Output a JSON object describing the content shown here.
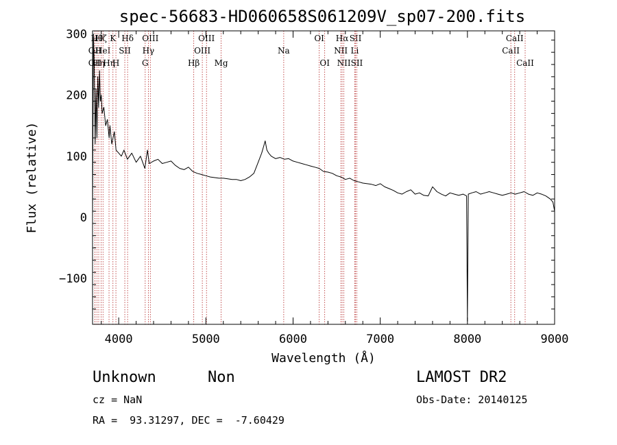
{
  "chart_data": {
    "type": "line",
    "title": "spec-56683-HD060658S061209V_sp07-200.fits",
    "xlabel": "Wavelength (Å)",
    "ylabel": "Flux (relative)",
    "xlim": [
      3700,
      9000
    ],
    "ylim": [
      -175,
      305
    ],
    "xticks": [
      "4000",
      "5000",
      "6000",
      "7000",
      "8000",
      "9000"
    ],
    "yticks": [
      "300",
      "200",
      "100",
      "0",
      "−100"
    ],
    "grid": false,
    "series": [
      {
        "color": "#000000",
        "x": [
          3700,
          3710,
          3720,
          3730,
          3740,
          3750,
          3760,
          3770,
          3780,
          3790,
          3800,
          3810,
          3830,
          3850,
          3870,
          3890,
          3900,
          3920,
          3950,
          3970,
          4000,
          4030,
          4060,
          4100,
          4150,
          4200,
          4250,
          4300,
          4330,
          4350,
          4400,
          4450,
          4500,
          4550,
          4600,
          4650,
          4700,
          4750,
          4800,
          4850,
          4900,
          4950,
          5000,
          5050,
          5100,
          5150,
          5200,
          5250,
          5300,
          5350,
          5400,
          5450,
          5500,
          5550,
          5600,
          5640,
          5660,
          5680,
          5700,
          5720,
          5750,
          5800,
          5850,
          5900,
          5950,
          6000,
          6050,
          6100,
          6150,
          6200,
          6250,
          6300,
          6350,
          6400,
          6450,
          6500,
          6550,
          6600,
          6650,
          6700,
          6750,
          6800,
          6850,
          6900,
          6950,
          7000,
          7050,
          7100,
          7150,
          7200,
          7250,
          7300,
          7350,
          7400,
          7450,
          7500,
          7550,
          7600,
          7650,
          7700,
          7750,
          7800,
          7850,
          7900,
          7950,
          7990,
          8000,
          8010,
          8050,
          8100,
          8150,
          8200,
          8250,
          8300,
          8350,
          8400,
          8450,
          8500,
          8550,
          8600,
          8650,
          8700,
          8750,
          8800,
          8850,
          8900,
          8950,
          8980,
          9000
        ],
        "y": [
          0,
          300,
          250,
          120,
          210,
          130,
          230,
          180,
          240,
          190,
          200,
          170,
          180,
          150,
          160,
          130,
          150,
          120,
          140,
          110,
          105,
          100,
          110,
          95,
          105,
          90,
          100,
          80,
          110,
          88,
          92,
          95,
          88,
          90,
          92,
          85,
          80,
          78,
          82,
          75,
          72,
          70,
          68,
          66,
          65,
          64,
          64,
          63,
          62,
          62,
          60,
          62,
          66,
          72,
          90,
          105,
          115,
          125,
          110,
          105,
          100,
          96,
          98,
          95,
          96,
          92,
          90,
          88,
          86,
          84,
          82,
          80,
          75,
          74,
          72,
          68,
          66,
          62,
          64,
          60,
          58,
          56,
          55,
          54,
          52,
          55,
          50,
          47,
          44,
          40,
          38,
          42,
          45,
          38,
          40,
          36,
          35,
          50,
          42,
          38,
          35,
          40,
          38,
          36,
          38,
          35,
          -170,
          38,
          40,
          42,
          38,
          40,
          42,
          40,
          38,
          36,
          38,
          40,
          38,
          40,
          42,
          38,
          36,
          40,
          38,
          35,
          30,
          25,
          10
        ]
      }
    ],
    "spectral_lines": [
      {
        "wl": 3727,
        "label": "OII",
        "row": 2
      },
      {
        "wl": 3727,
        "label": "OII",
        "row": 3
      },
      {
        "wl": 3750,
        "label": "Hθ",
        "row": 1
      },
      {
        "wl": 3771,
        "label": "Hη",
        "row": 3
      },
      {
        "wl": 3798,
        "label": "Hζ",
        "row": 1
      },
      {
        "wl": 3820,
        "label": "HeI",
        "row": 2
      },
      {
        "wl": 3889,
        "label": "Hη",
        "row": 3
      },
      {
        "wl": 3934,
        "label": "K",
        "row": 1
      },
      {
        "wl": 3968,
        "label": "H",
        "row": 3
      },
      {
        "wl": 4070,
        "label": "SII",
        "row": 2
      },
      {
        "wl": 4102,
        "label": "Hδ",
        "row": 1
      },
      {
        "wl": 4304,
        "label": "G",
        "row": 3
      },
      {
        "wl": 4340,
        "label": "Hγ",
        "row": 2
      },
      {
        "wl": 4363,
        "label": "OIII",
        "row": 1
      },
      {
        "wl": 4861,
        "label": "Hβ",
        "row": 3
      },
      {
        "wl": 4959,
        "label": "OIII",
        "row": 2
      },
      {
        "wl": 5007,
        "label": "OIII",
        "row": 1
      },
      {
        "wl": 5175,
        "label": "Mg",
        "row": 3
      },
      {
        "wl": 5893,
        "label": "Na",
        "row": 2
      },
      {
        "wl": 6300,
        "label": "OI",
        "row": 1
      },
      {
        "wl": 6363,
        "label": "OI",
        "row": 3
      },
      {
        "wl": 6548,
        "label": "NII",
        "row": 2
      },
      {
        "wl": 6563,
        "label": "Hα",
        "row": 1
      },
      {
        "wl": 6583,
        "label": "NII",
        "row": 3
      },
      {
        "wl": 6707,
        "label": "Li",
        "row": 2
      },
      {
        "wl": 6716,
        "label": "SII",
        "row": 1
      },
      {
        "wl": 6731,
        "label": "SII",
        "row": 3
      },
      {
        "wl": 8498,
        "label": "CaII",
        "row": 2
      },
      {
        "wl": 8542,
        "label": "CaII",
        "row": 1
      },
      {
        "wl": 8662,
        "label": "CaII",
        "row": 3
      }
    ]
  },
  "footer": {
    "class_label": "Unknown",
    "subclass_label": "Non",
    "cz_line": "cz = NaN",
    "coords_line": "RA =  93.31297, DEC =  -7.60429",
    "survey": "LAMOST DR2",
    "obs_date": "Obs-Date: 20140125"
  }
}
